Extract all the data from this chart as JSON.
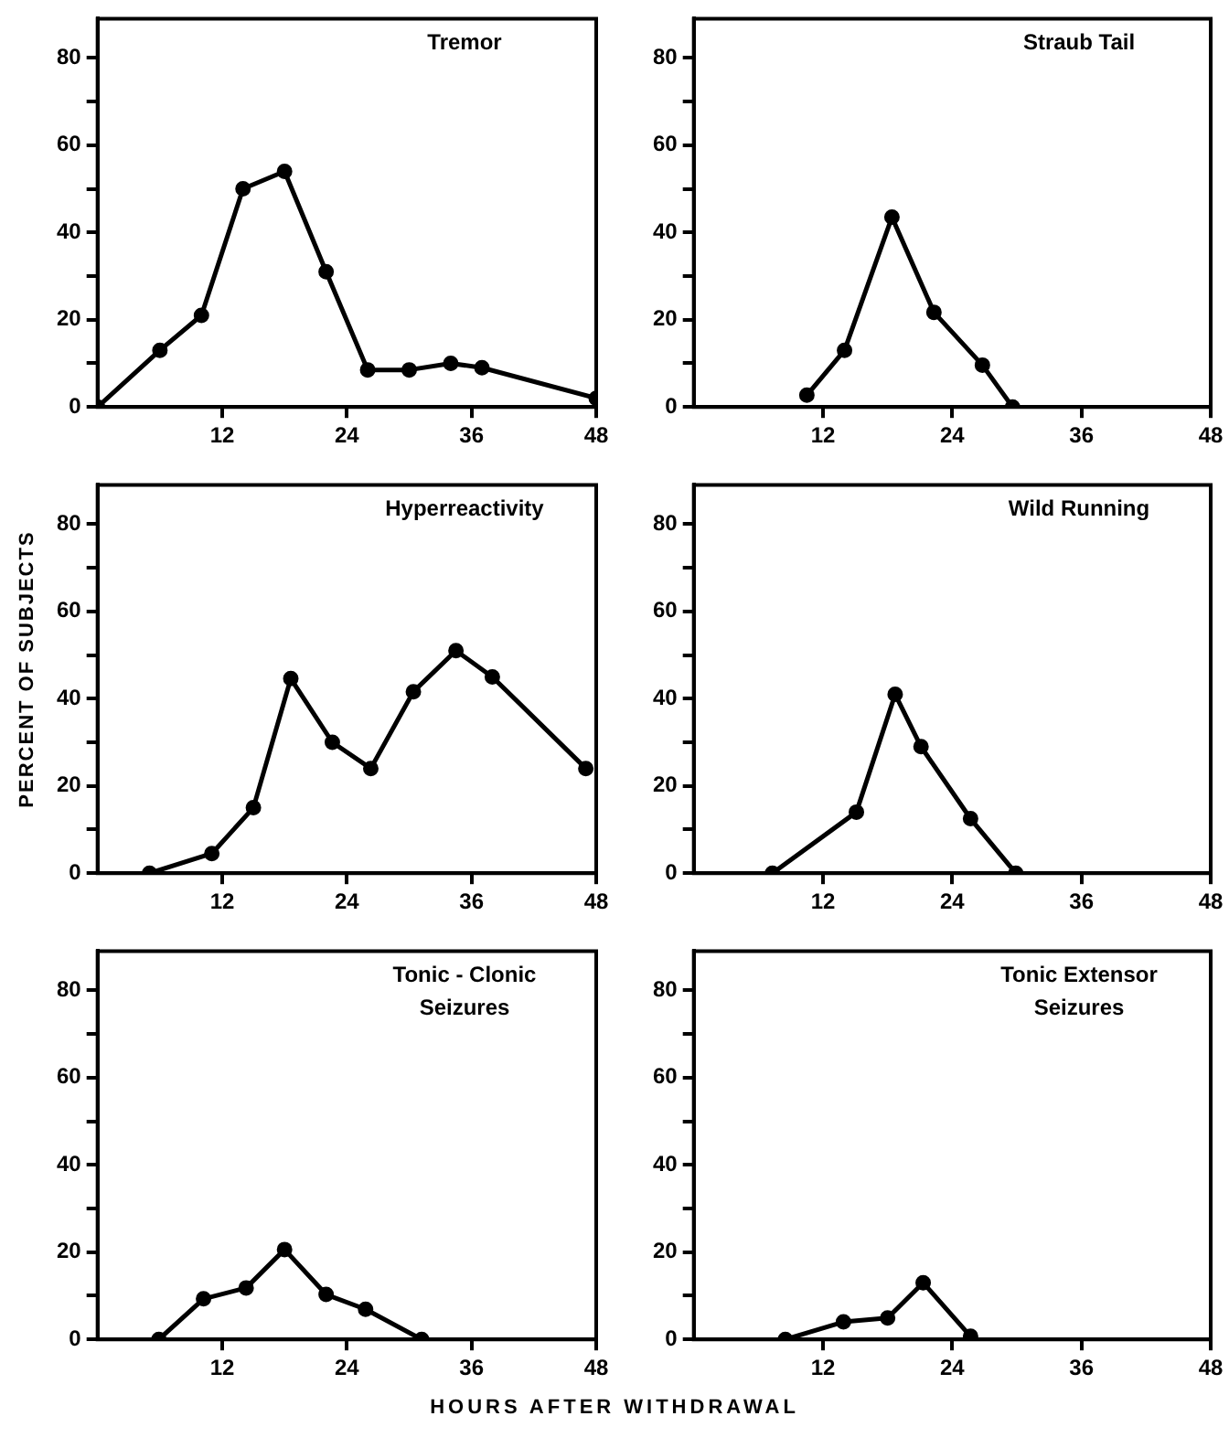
{
  "chart_data": [
    {
      "type": "line",
      "title": "Tremor",
      "x": [
        0,
        6,
        10,
        14,
        18,
        22,
        26,
        30,
        34,
        37,
        48
      ],
      "values": [
        0,
        13,
        21,
        50,
        54,
        31,
        8.5,
        8.5,
        10,
        9,
        2
      ],
      "color": "#000000",
      "marker": "circle",
      "xlim": [
        0,
        48
      ],
      "xticks": [
        12,
        24,
        36,
        48
      ],
      "ylim": [
        0,
        89
      ],
      "yticks": [
        0,
        {
          "value": 10,
          "label": null
        },
        20,
        {
          "value": 30,
          "label": null
        },
        40,
        {
          "value": 50,
          "label": null
        },
        60,
        {
          "value": 70,
          "label": null
        },
        80
      ]
    },
    {
      "type": "line",
      "title": "Straub Tail",
      "x": [
        10.5,
        14,
        18.4,
        22.3,
        26.8,
        29.6
      ],
      "values": [
        2.7,
        13,
        43.5,
        21.7,
        9.6,
        0
      ],
      "color": "#000000",
      "marker": "circle",
      "xlim": [
        0,
        48
      ],
      "xticks": [
        12,
        24,
        36,
        48
      ],
      "ylim": [
        0,
        89
      ],
      "yticks": [
        0,
        {
          "value": 10,
          "label": null
        },
        20,
        {
          "value": 30,
          "label": null
        },
        40,
        {
          "value": 50,
          "label": null
        },
        60,
        {
          "value": 70,
          "label": null
        },
        80
      ]
    },
    {
      "type": "line",
      "title": "Hyperreactivity",
      "ylabel": "PERCENT OF SUBJECTS",
      "x": [
        5,
        11,
        15,
        18.6,
        22.6,
        26.3,
        30.4,
        34.5,
        38,
        47
      ],
      "values": [
        0,
        4.5,
        15,
        44.6,
        30,
        24,
        41.6,
        51,
        45,
        24
      ],
      "color": "#000000",
      "marker": "circle",
      "xlim": [
        0,
        48
      ],
      "xticks": [
        12,
        24,
        36,
        48
      ],
      "ylim": [
        0,
        89
      ],
      "yticks": [
        0,
        {
          "value": 10,
          "label": null
        },
        20,
        {
          "value": 30,
          "label": null
        },
        40,
        {
          "value": 50,
          "label": null
        },
        60,
        {
          "value": 70,
          "label": null
        },
        80
      ]
    },
    {
      "type": "line",
      "title": "Wild Running",
      "x": [
        7.3,
        15.1,
        18.7,
        21.1,
        25.7,
        29.9
      ],
      "values": [
        0,
        14,
        41,
        29,
        12.5,
        0
      ],
      "color": "#000000",
      "marker": "circle",
      "xlim": [
        0,
        48
      ],
      "xticks": [
        12,
        24,
        36,
        48
      ],
      "ylim": [
        0,
        89
      ],
      "yticks": [
        0,
        {
          "value": 10,
          "label": null
        },
        20,
        {
          "value": 30,
          "label": null
        },
        40,
        {
          "value": 50,
          "label": null
        },
        60,
        {
          "value": 70,
          "label": null
        },
        80
      ]
    },
    {
      "type": "line",
      "title": "Tonic - Clonic Seizures",
      "xlabel": "HOURS AFTER WITHDRAWAL",
      "x": [
        5.9,
        10.2,
        14.3,
        18,
        22,
        25.8,
        31.2
      ],
      "values": [
        0,
        9.3,
        11.8,
        20.6,
        10.3,
        6.9,
        0
      ],
      "color": "#000000",
      "marker": "circle",
      "xlim": [
        0,
        48
      ],
      "xticks": [
        12,
        24,
        36,
        48
      ],
      "ylim": [
        0,
        89
      ],
      "yticks": [
        0,
        {
          "value": 10,
          "label": null
        },
        20,
        {
          "value": 30,
          "label": null
        },
        40,
        {
          "value": 50,
          "label": null
        },
        60,
        {
          "value": 70,
          "label": null
        },
        80
      ]
    },
    {
      "type": "line",
      "title": "Tonic Extensor Seizures",
      "x": [
        8.5,
        13.9,
        18,
        21.3,
        25.7
      ],
      "values": [
        0,
        4,
        4.9,
        13,
        0.7
      ],
      "color": "#000000",
      "marker": "circle",
      "xlim": [
        0,
        48
      ],
      "xticks": [
        12,
        24,
        36,
        48
      ],
      "ylim": [
        0,
        89
      ],
      "yticks": [
        0,
        {
          "value": 10,
          "label": null
        },
        20,
        {
          "value": 30,
          "label": null
        },
        40,
        {
          "value": 50,
          "label": null
        },
        60,
        {
          "value": 70,
          "label": null
        },
        80
      ]
    }
  ]
}
